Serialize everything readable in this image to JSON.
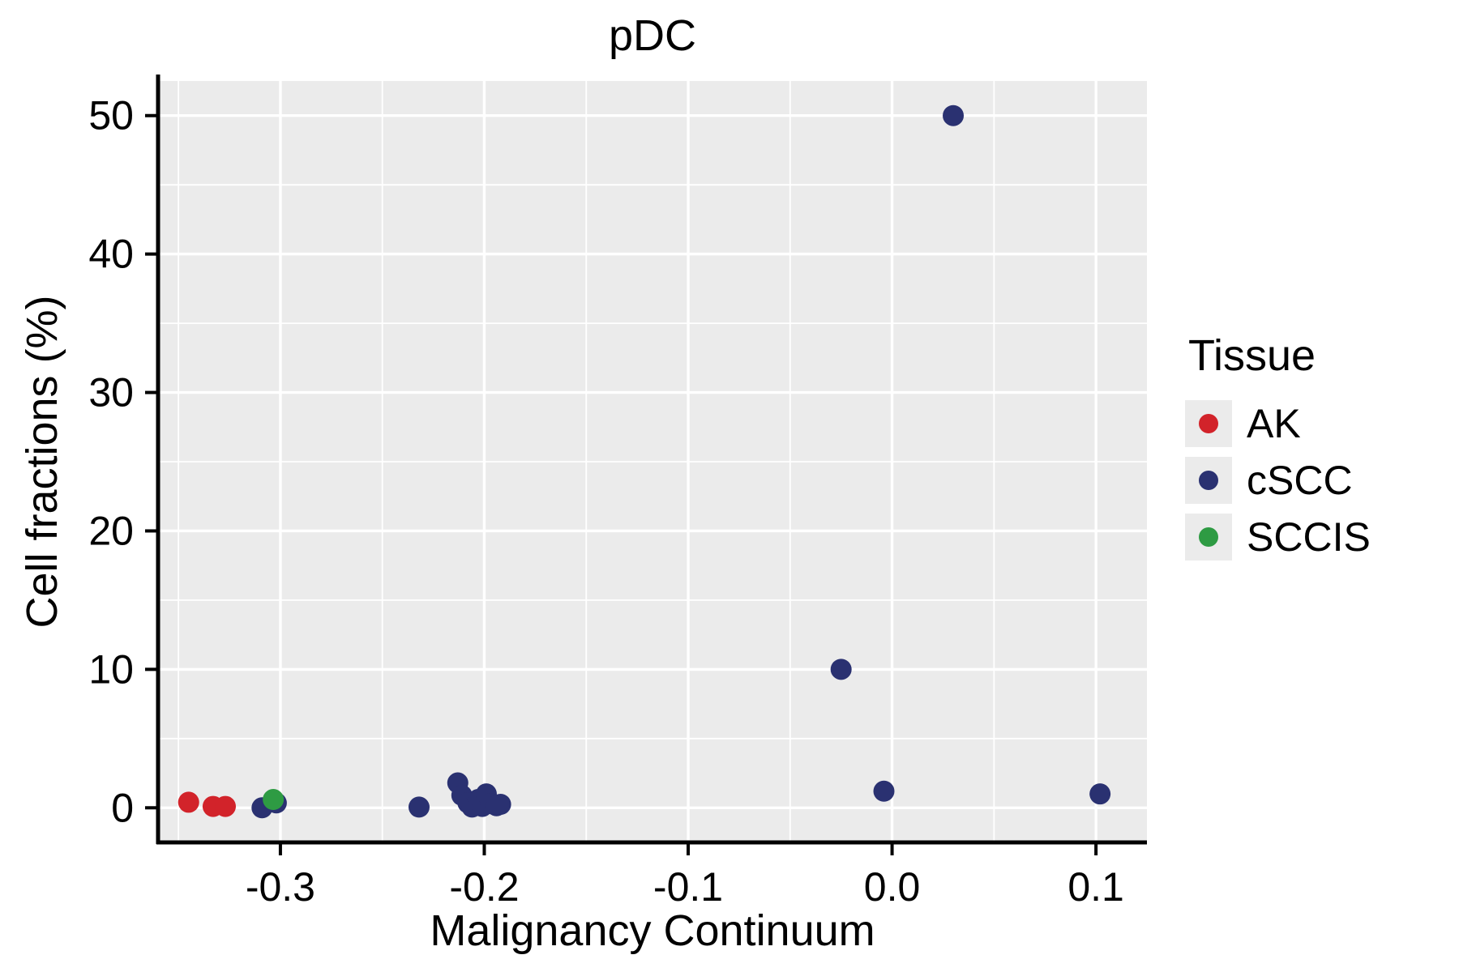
{
  "chart_data": {
    "type": "scatter",
    "title": "pDC",
    "xlabel": "Malignancy Continuum",
    "ylabel": "Cell fractions (%)",
    "legend_title": "Tissue",
    "legend_position": "right",
    "grid": true,
    "panel_background": "#EBEBEB",
    "grid_color": "#FFFFFF",
    "axis_color": "#000000",
    "xlim": [
      -0.36,
      0.125
    ],
    "ylim": [
      -2.5,
      52.5
    ],
    "xticks": [
      -0.3,
      -0.2,
      -0.1,
      0.0,
      0.1
    ],
    "xtick_labels": [
      "-0.3",
      "-0.2",
      "-0.1",
      "0.0",
      "0.1"
    ],
    "yticks": [
      0,
      10,
      20,
      30,
      40,
      50
    ],
    "ytick_labels": [
      "0",
      "10",
      "20",
      "30",
      "40",
      "50"
    ],
    "x_minor": [
      -0.35,
      -0.25,
      -0.15,
      -0.05,
      0.05
    ],
    "y_minor": [
      5,
      15,
      25,
      35,
      45
    ],
    "point_radius": 13,
    "series": [
      {
        "name": "AK",
        "color": "#D2232A",
        "points": [
          [
            -0.345,
            0.4
          ],
          [
            -0.333,
            0.1
          ],
          [
            -0.327,
            0.1
          ]
        ]
      },
      {
        "name": "cSCC",
        "color": "#2A3171",
        "points": [
          [
            -0.309,
            0.0
          ],
          [
            -0.302,
            0.35
          ],
          [
            -0.232,
            0.05
          ],
          [
            -0.213,
            1.8
          ],
          [
            -0.211,
            0.9
          ],
          [
            -0.208,
            0.35
          ],
          [
            -0.206,
            0.05
          ],
          [
            -0.203,
            0.6
          ],
          [
            -0.201,
            0.1
          ],
          [
            -0.199,
            1.0
          ],
          [
            -0.197,
            0.3
          ],
          [
            -0.194,
            0.15
          ],
          [
            -0.192,
            0.25
          ],
          [
            -0.025,
            10.0
          ],
          [
            -0.004,
            1.2
          ],
          [
            0.03,
            50.0
          ],
          [
            0.102,
            1.0
          ]
        ]
      },
      {
        "name": "SCCIS",
        "color": "#2E9B43",
        "points": [
          [
            -0.3035,
            0.6
          ]
        ]
      }
    ]
  }
}
